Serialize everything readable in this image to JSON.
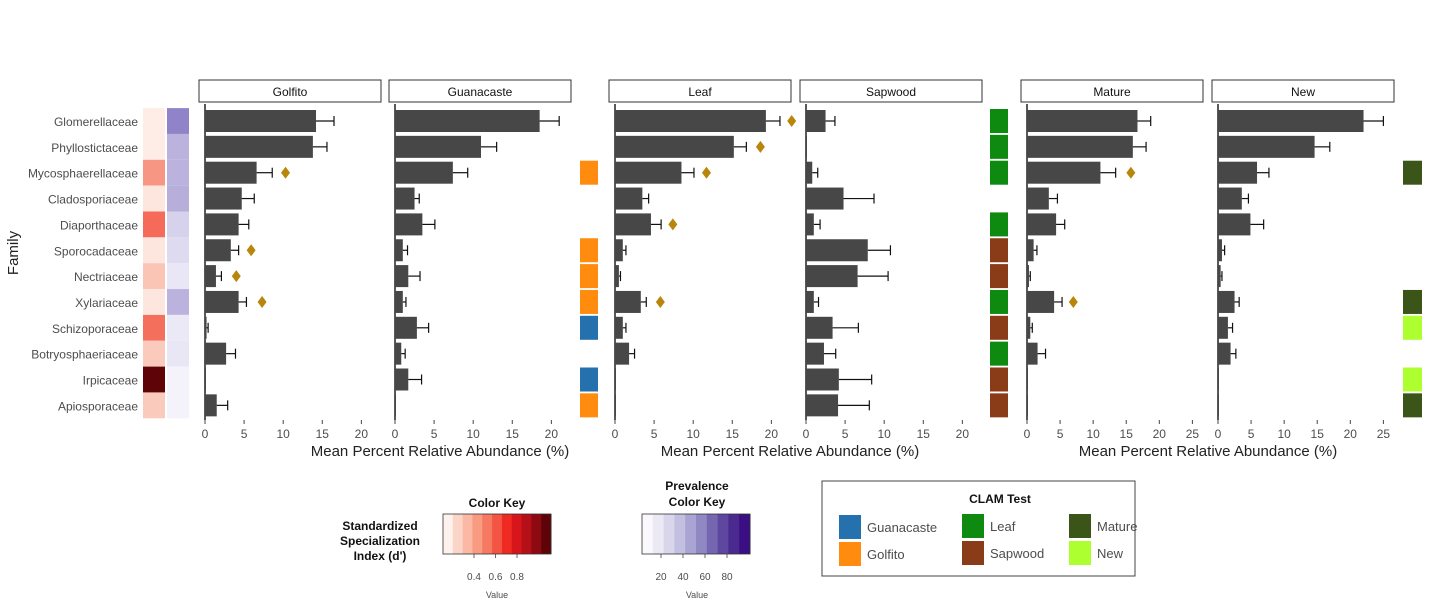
{
  "families": [
    "Glomerellaceae",
    "Phyllostictaceae",
    "Mycosphaerellaceae",
    "Cladosporiaceae",
    "Diaporthaceae",
    "Sporocadaceae",
    "Nectriaceae",
    "Xylariaceae",
    "Schizoporaceae",
    "Botryosphaeriaceae",
    "Irpicaceae",
    "Apiosporaceae"
  ],
  "y_axis_title": "Family",
  "x_axis_title": "Mean Percent Relative Abundance (%)",
  "specialization_values": [
    0.05,
    0.05,
    0.45,
    0.08,
    0.62,
    0.08,
    0.25,
    0.08,
    0.6,
    0.22,
    1.0,
    0.22
  ],
  "prevalence_values": [
    75,
    45,
    45,
    48,
    25,
    20,
    12,
    45,
    10,
    12,
    4,
    4
  ],
  "chart_data": [
    {
      "type": "bar",
      "panels": [
        {
          "name": "Golfito",
          "values": [
            14.2,
            13.8,
            6.6,
            4.7,
            4.3,
            3.3,
            1.4,
            4.3,
            0.2,
            2.7,
            0.05,
            1.5
          ],
          "errors": [
            2.3,
            1.8,
            2.0,
            1.6,
            1.3,
            1.0,
            0.7,
            1.0,
            0.2,
            1.2,
            0.05,
            1.4
          ],
          "diamonds": [
            null,
            null,
            10.3,
            null,
            null,
            5.9,
            4.0,
            7.3,
            null,
            null,
            null,
            null
          ]
        },
        {
          "name": "Guanacaste",
          "values": [
            18.5,
            11.0,
            7.4,
            2.5,
            3.5,
            1.0,
            1.7,
            1.0,
            2.8,
            0.8,
            1.7,
            0.05
          ],
          "errors": [
            2.5,
            2.0,
            1.9,
            0.6,
            1.6,
            0.6,
            1.5,
            0.4,
            1.5,
            0.5,
            1.7,
            0.05
          ],
          "diamonds": []
        }
      ],
      "x_ticks": [
        0,
        5,
        10,
        15,
        20
      ],
      "xlim": [
        0,
        22
      ],
      "clam_test": [
        null,
        null,
        "Golfito",
        null,
        null,
        "Golfito",
        "Golfito",
        "Golfito",
        "Guanacaste",
        null,
        "Guanacaste",
        "Golfito"
      ]
    },
    {
      "type": "bar",
      "panels": [
        {
          "name": "Leaf",
          "values": [
            19.3,
            15.2,
            8.5,
            3.5,
            4.6,
            1.0,
            0.5,
            3.3,
            1.0,
            1.8,
            0.05,
            0.05
          ],
          "errors": [
            1.8,
            1.6,
            1.6,
            0.8,
            1.3,
            0.4,
            0.2,
            0.7,
            0.4,
            0.7,
            0.05,
            0.05
          ],
          "diamonds": [
            22.6,
            18.6,
            11.7,
            null,
            7.4,
            null,
            null,
            5.8,
            null,
            null,
            null,
            null
          ]
        },
        {
          "name": "Sapwood",
          "values": [
            2.5,
            0.05,
            0.8,
            4.8,
            1.0,
            7.9,
            6.6,
            1.0,
            3.4,
            2.3,
            4.2,
            4.1
          ],
          "errors": [
            1.2,
            0.05,
            0.7,
            3.9,
            0.8,
            2.9,
            3.9,
            0.6,
            3.3,
            1.5,
            4.2,
            4.0
          ],
          "diamonds": []
        }
      ],
      "x_ticks": [
        0,
        5,
        10,
        15,
        20
      ],
      "xlim": [
        0,
        22
      ],
      "clam_test": [
        "Leaf",
        "Leaf",
        "Leaf",
        null,
        "Leaf",
        "Sapwood",
        "Sapwood",
        "Leaf",
        "Sapwood",
        "Leaf",
        "Sapwood",
        "Sapwood"
      ]
    },
    {
      "type": "bar",
      "panels": [
        {
          "name": "Mature",
          "values": [
            16.7,
            16.0,
            11.1,
            3.3,
            4.4,
            1.0,
            0.3,
            4.1,
            0.5,
            1.6,
            0.05,
            0.05
          ],
          "errors": [
            2.0,
            2.0,
            2.3,
            1.3,
            1.3,
            0.5,
            0.2,
            1.2,
            0.3,
            1.2,
            0.05,
            0.05
          ],
          "diamonds": [
            null,
            null,
            15.7,
            null,
            null,
            null,
            null,
            7.0,
            null,
            null,
            null,
            null
          ]
        },
        {
          "name": "New",
          "values": [
            22.0,
            14.6,
            5.9,
            3.6,
            4.9,
            0.6,
            0.4,
            2.5,
            1.5,
            1.9,
            0.05,
            0.05
          ],
          "errors": [
            3.0,
            2.3,
            1.8,
            1.0,
            2.0,
            0.4,
            0.2,
            0.7,
            0.7,
            0.8,
            0.05,
            0.05
          ],
          "diamonds": []
        }
      ],
      "x_ticks": [
        0,
        5,
        10,
        15,
        20,
        25
      ],
      "xlim": [
        0,
        26
      ],
      "clam_test": [
        null,
        null,
        "Mature",
        null,
        null,
        null,
        null,
        "Mature",
        "New",
        null,
        "New",
        "Mature"
      ]
    }
  ],
  "specialization_key": {
    "title": "Color Key",
    "side_title": [
      "Standardized",
      "Specialization",
      "Index (d')"
    ],
    "ticks": [
      "0.4",
      "0.6",
      "0.8"
    ],
    "value_label": "Value",
    "colors": [
      "#fff2ee",
      "#fcd5c9",
      "#fbb9a5",
      "#f99b82",
      "#f57a61",
      "#f35444",
      "#ee2a23",
      "#d7161b",
      "#b50f18",
      "#8e0a12",
      "#5e0409"
    ]
  },
  "prevalence_key": {
    "title": [
      "Prevalence",
      "Color Key"
    ],
    "ticks": [
      "20",
      "40",
      "60",
      "80"
    ],
    "value_label": "Value",
    "colors": [
      "#faf8fd",
      "#ebe9f4",
      "#d9d6ec",
      "#c2bfe1",
      "#a9a4d3",
      "#8f88c3",
      "#7666b1",
      "#5e479f",
      "#4a2a8f",
      "#3a0f83"
    ]
  },
  "clam_legend": {
    "title": "CLAM Test",
    "items": [
      {
        "label": "Guanacaste",
        "color": "#2471ad"
      },
      {
        "label": "Golfito",
        "color": "#ff8c0f"
      },
      {
        "label": "Leaf",
        "color": "#0e8a10"
      },
      {
        "label": "Sapwood",
        "color": "#8a3b17"
      },
      {
        "label": "Mature",
        "color": "#3b5418"
      },
      {
        "label": "New",
        "color": "#adff2f"
      }
    ]
  },
  "colors": {
    "bar": "#474747",
    "diamond": "#b8860b",
    "strip_border": "#333333"
  }
}
